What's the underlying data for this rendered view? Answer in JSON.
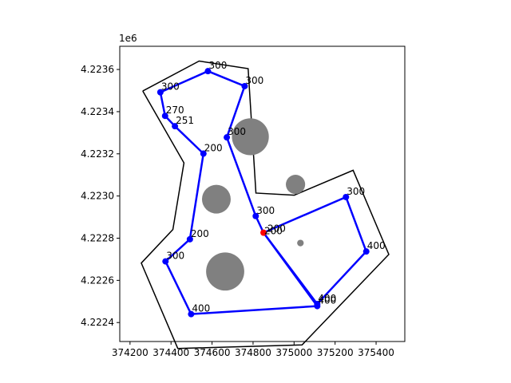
{
  "chart_data": {
    "type": "scatter",
    "title": "",
    "xlabel": "",
    "ylabel": "",
    "y_offset_label": "1e6",
    "xlim": [
      374150,
      375540
    ],
    "ylim": [
      4222310,
      4223710
    ],
    "grid": false,
    "x_ticks": [
      374200,
      374400,
      374600,
      374800,
      375000,
      375200,
      375400
    ],
    "x_tick_labels": [
      "374200",
      "374400",
      "374600",
      "374800",
      "375000",
      "375200",
      "375400"
    ],
    "y_ticks": [
      4222400,
      4222600,
      4222800,
      4223000,
      4223200,
      4223400,
      4223600
    ],
    "y_tick_labels": [
      "4.2224",
      "4.2226",
      "4.2228",
      "4.2230",
      "4.2232",
      "4.2234",
      "4.2236"
    ],
    "boundary": [
      [
        374262,
        4223498
      ],
      [
        374537,
        4223640
      ],
      [
        374776,
        4223604
      ],
      [
        374814,
        4223014
      ],
      [
        375001,
        4223004
      ],
      [
        375288,
        4223122
      ],
      [
        375462,
        4222723
      ],
      [
        375039,
        4222294
      ],
      [
        374433,
        4222277
      ],
      [
        374255,
        4222682
      ],
      [
        374409,
        4222841
      ],
      [
        374463,
        4223157
      ],
      [
        374262,
        4223498
      ]
    ],
    "obstacles": [
      {
        "x": 374787,
        "y": 4223281,
        "r": 90
      },
      {
        "x": 375007,
        "y": 4223055,
        "r": 47
      },
      {
        "x": 374621,
        "y": 4222985,
        "r": 70
      },
      {
        "x": 374664,
        "y": 4222642,
        "r": 93
      },
      {
        "x": 375031,
        "y": 4222777,
        "r": 16
      }
    ],
    "nodes": [
      {
        "x": 374348,
        "y": 4223492,
        "label": "300"
      },
      {
        "x": 374580,
        "y": 4223592,
        "label": "300"
      },
      {
        "x": 374759,
        "y": 4223521,
        "label": "300"
      },
      {
        "x": 374672,
        "y": 4223278,
        "label": "300"
      },
      {
        "x": 374813,
        "y": 4222905,
        "label": "300"
      },
      {
        "x": 375253,
        "y": 4222995,
        "label": "300"
      },
      {
        "x": 375352,
        "y": 4222737,
        "label": "400"
      },
      {
        "x": 375113,
        "y": 4222488,
        "label": "400"
      },
      {
        "x": 375113,
        "y": 4222478,
        "label": "400"
      },
      {
        "x": 374498,
        "y": 4222440,
        "label": "400"
      },
      {
        "x": 374373,
        "y": 4222690,
        "label": "300"
      },
      {
        "x": 374492,
        "y": 4222795,
        "label": "200"
      },
      {
        "x": 374558,
        "y": 4223201,
        "label": "200"
      },
      {
        "x": 374419,
        "y": 4223331,
        "label": "251"
      },
      {
        "x": 374371,
        "y": 4223380,
        "label": "270"
      }
    ],
    "depot": {
      "x": 374851,
      "y": 4222826,
      "label": "200"
    },
    "depot_label2": "200",
    "routes": [
      {
        "name": "",
        "points": [
          [
            374348,
            4223492
          ],
          [
            374580,
            4223592
          ],
          [
            374759,
            4223521
          ],
          [
            374672,
            4223278
          ],
          [
            374813,
            4222905
          ],
          [
            374851,
            4222826
          ],
          [
            375113,
            4222478
          ],
          [
            374498,
            4222440
          ],
          [
            374373,
            4222690
          ],
          [
            374492,
            4222795
          ],
          [
            374558,
            4223201
          ],
          [
            374419,
            4223331
          ],
          [
            374371,
            4223380
          ],
          [
            374348,
            4223492
          ]
        ]
      },
      {
        "name": "",
        "points": [
          [
            374851,
            4222826
          ],
          [
            375253,
            4222995
          ],
          [
            375352,
            4222737
          ],
          [
            375113,
            4222488
          ],
          [
            374851,
            4222826
          ]
        ]
      }
    ],
    "colors": {
      "route": "#0000ff",
      "node": "#0000ff",
      "depot": "#ff0000",
      "boundary": "#000000",
      "obstacle": "#808080"
    }
  }
}
